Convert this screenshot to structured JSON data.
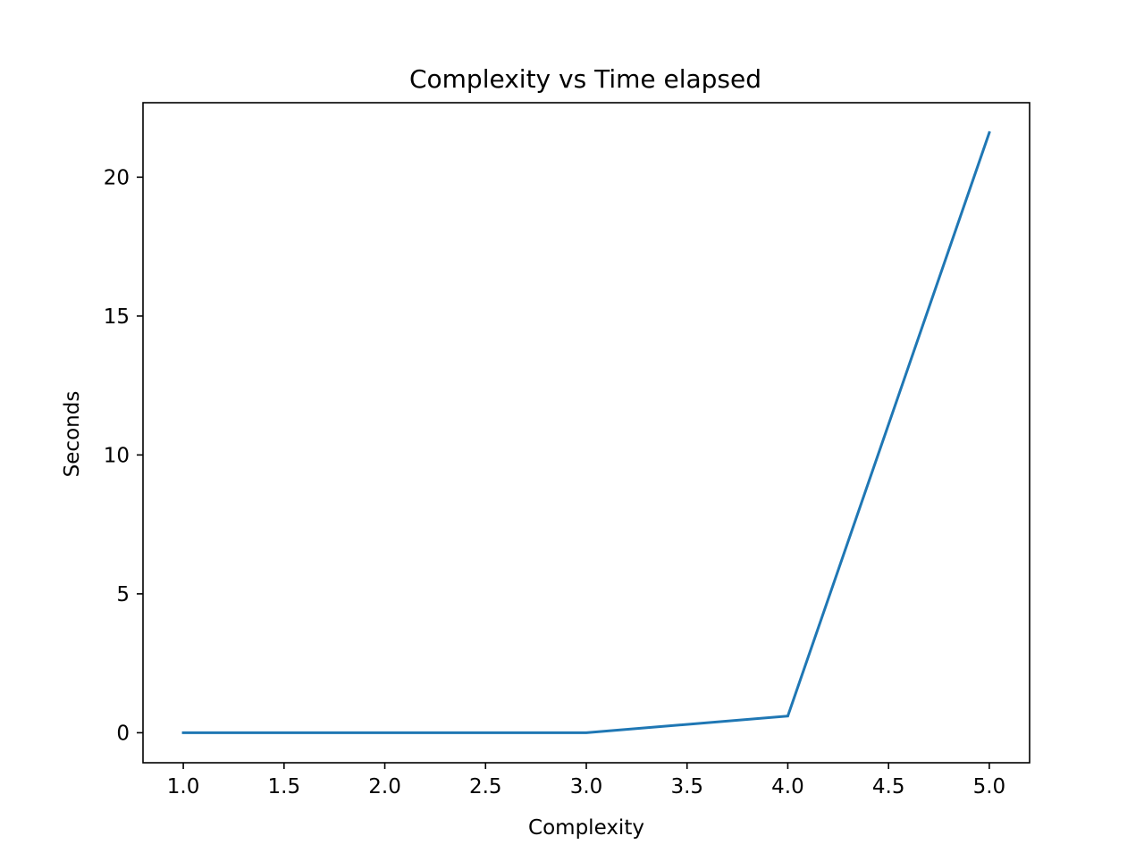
{
  "chart_data": {
    "type": "line",
    "title": "Complexity vs Time elapsed",
    "xlabel": "Complexity",
    "ylabel": "Seconds",
    "x": [
      1,
      2,
      3,
      4,
      5
    ],
    "series": [
      {
        "values": [
          0.0,
          0.0,
          0.0,
          0.6,
          21.6
        ]
      }
    ],
    "xlim": [
      0.8,
      5.2
    ],
    "ylim": [
      -1.08,
      22.68
    ],
    "xticks": [
      1.0,
      1.5,
      2.0,
      2.5,
      3.0,
      3.5,
      4.0,
      4.5,
      5.0
    ],
    "xtick_labels": [
      "1.0",
      "1.5",
      "2.0",
      "2.5",
      "3.0",
      "3.5",
      "4.0",
      "4.5",
      "5.0"
    ],
    "yticks": [
      0,
      5,
      10,
      15,
      20
    ],
    "ytick_labels": [
      "0",
      "5",
      "10",
      "15",
      "20"
    ],
    "grid": false,
    "legend": "none",
    "colors": {
      "line": "#1f77b4",
      "axes": "#000000",
      "background": "#ffffff"
    }
  }
}
